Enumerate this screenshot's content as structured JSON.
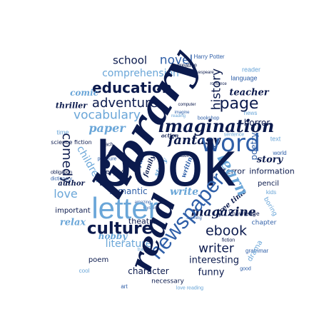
{
  "colors": {
    "navy": "#0b1a4d",
    "mid": "#2f5fa8",
    "sky": "#6aa6d8",
    "pale": "#a9cbe8"
  },
  "words": {
    "book": "book",
    "library": "library",
    "read": "read",
    "letter": "letter",
    "newspaper": "newspaper",
    "word": "word",
    "learn": "learn",
    "imagination": "imagination",
    "culture": "culture",
    "magazine": "magazine",
    "ebook": "ebook",
    "writer": "writer",
    "education": "education",
    "adventure": "adventure",
    "novel": "novel",
    "school": "school",
    "page": "page",
    "history": "history",
    "vocabulary": "vocabulary",
    "comprehension": "comprehension",
    "teacher": "teacher",
    "comic": "comic",
    "paper": "paper",
    "fantasy": "fantasy",
    "comedy": "comedy",
    "children": "children",
    "love": "love",
    "author": "author",
    "romantic": "romantic",
    "write": "write",
    "story": "story",
    "information": "information",
    "poetry": "poetry",
    "horror": "horror",
    "terror": "terror",
    "thriller": "thriller",
    "literature": "literature",
    "interesting": "interesting",
    "funny": "funny",
    "hobby": "hobby",
    "relax": "relax",
    "important": "important",
    "theatre": "theatre",
    "character": "character",
    "poem": "poem",
    "necessary": "necessary",
    "chapter": "chapter",
    "knowledge": "knowledge",
    "boring": "boring",
    "pencil": "pencil",
    "science_fiction": "science fiction",
    "free_time": "free time",
    "enjoy": "enjoy",
    "family": "family",
    "fun": "fun",
    "study": "study",
    "writing": "writing",
    "action": "action",
    "drama": "drama",
    "harry_potter": "Harry Potter",
    "creative": "creative",
    "reader": "reader",
    "language": "language",
    "news": "news",
    "bookshop": "bookshop",
    "teach": "teach",
    "adult": "adult",
    "imagine": "imagine",
    "computer": "computer",
    "reading": "reading",
    "pleasure": "pleasure",
    "learning": "learning",
    "amazing": "amazing",
    "time": "time",
    "dictionary": "dictionary",
    "sentence": "sentence",
    "text": "text",
    "world": "world",
    "romance": "romance",
    "travel": "travel",
    "mystery": "mystery",
    "kids": "kids",
    "obligation": "obligation",
    "grammar": "grammar",
    "shakespeare": "Shakespeare",
    "cool": "cool",
    "good": "good",
    "love_reading": "love reading",
    "art": "art",
    "fiction": "fiction"
  }
}
